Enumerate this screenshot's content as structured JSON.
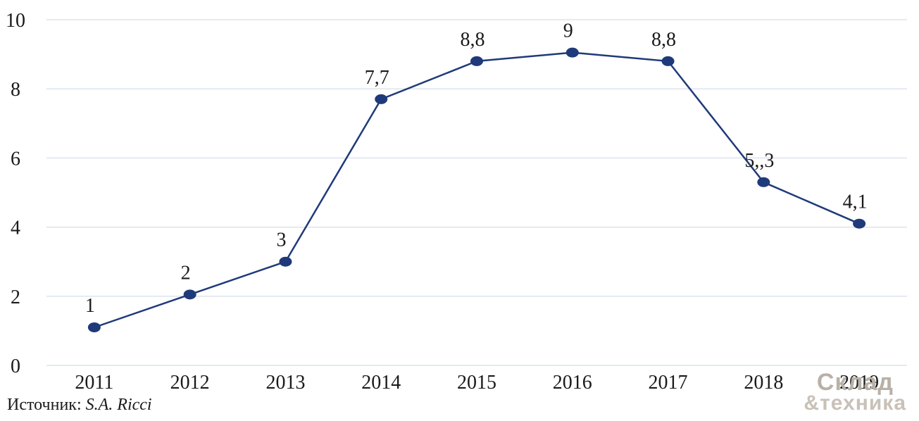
{
  "chart_data": {
    "type": "line",
    "title": "",
    "xlabel": "",
    "ylabel": "",
    "categories": [
      "2011",
      "2012",
      "2013",
      "2014",
      "2015",
      "2016",
      "2017",
      "2018",
      "2019"
    ],
    "values": [
      1.1,
      2.05,
      3,
      7.7,
      8.8,
      9.05,
      8.8,
      5.3,
      4.1
    ],
    "data_labels": [
      "1",
      "2",
      "3",
      "7,7",
      "8,8",
      "9",
      "8,8",
      "5,,3",
      "4,1"
    ],
    "ylim": [
      0,
      10
    ],
    "y_ticks": [
      "0",
      "2",
      "4",
      "6",
      "8",
      "10"
    ],
    "grid": true,
    "legend": "none",
    "line_color": "#1f3a7a",
    "grid_color": "#dde3ec"
  },
  "source": {
    "prefix": "Источник:",
    "author": "S.A. Ricci"
  },
  "watermark": {
    "line1": "Склад",
    "line2": "&техника"
  }
}
